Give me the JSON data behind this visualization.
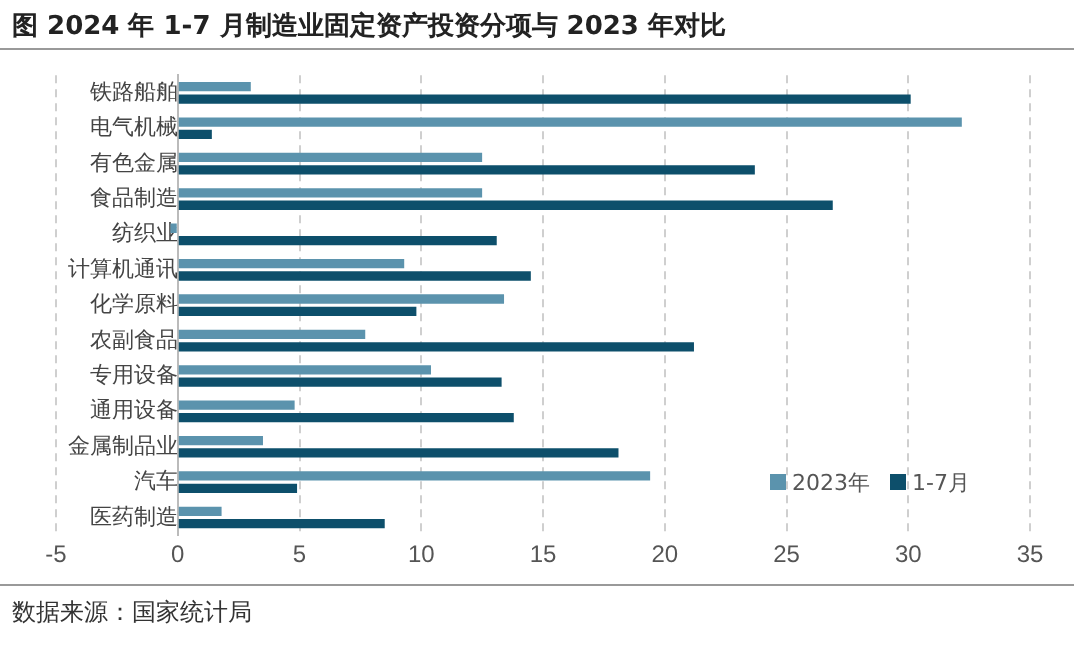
{
  "chart_data": {
    "type": "bar",
    "orientation": "horizontal",
    "title": "图 2024 年 1-7 月制造业固定资产投资分项与 2023 年对比",
    "categories": [
      "铁路船舶",
      "电气机械",
      "有色金属",
      "食品制造",
      "纺织业",
      "计算机通讯",
      "化学原料",
      "农副食品",
      "专用设备",
      "通用设备",
      "金属制品业",
      "汽车",
      "医药制造"
    ],
    "series": [
      {
        "name": "2023年",
        "color": "#5b93ad",
        "values": [
          3.0,
          32.2,
          12.5,
          12.5,
          -0.3,
          9.3,
          13.4,
          7.7,
          10.4,
          4.8,
          3.5,
          19.4,
          1.8
        ]
      },
      {
        "name": "1-7月",
        "color": "#0d4f6b",
        "values": [
          30.1,
          1.4,
          23.7,
          26.9,
          13.1,
          14.5,
          9.8,
          21.2,
          13.3,
          13.8,
          18.1,
          4.9,
          8.5
        ]
      }
    ],
    "xlim": [
      -5,
      35
    ],
    "xticks": [
      -5,
      0,
      5,
      10,
      15,
      20,
      25,
      30,
      35
    ],
    "grid": "x",
    "legend": "bottom right",
    "annotations": [
      "数据来源：国家统计局"
    ]
  }
}
